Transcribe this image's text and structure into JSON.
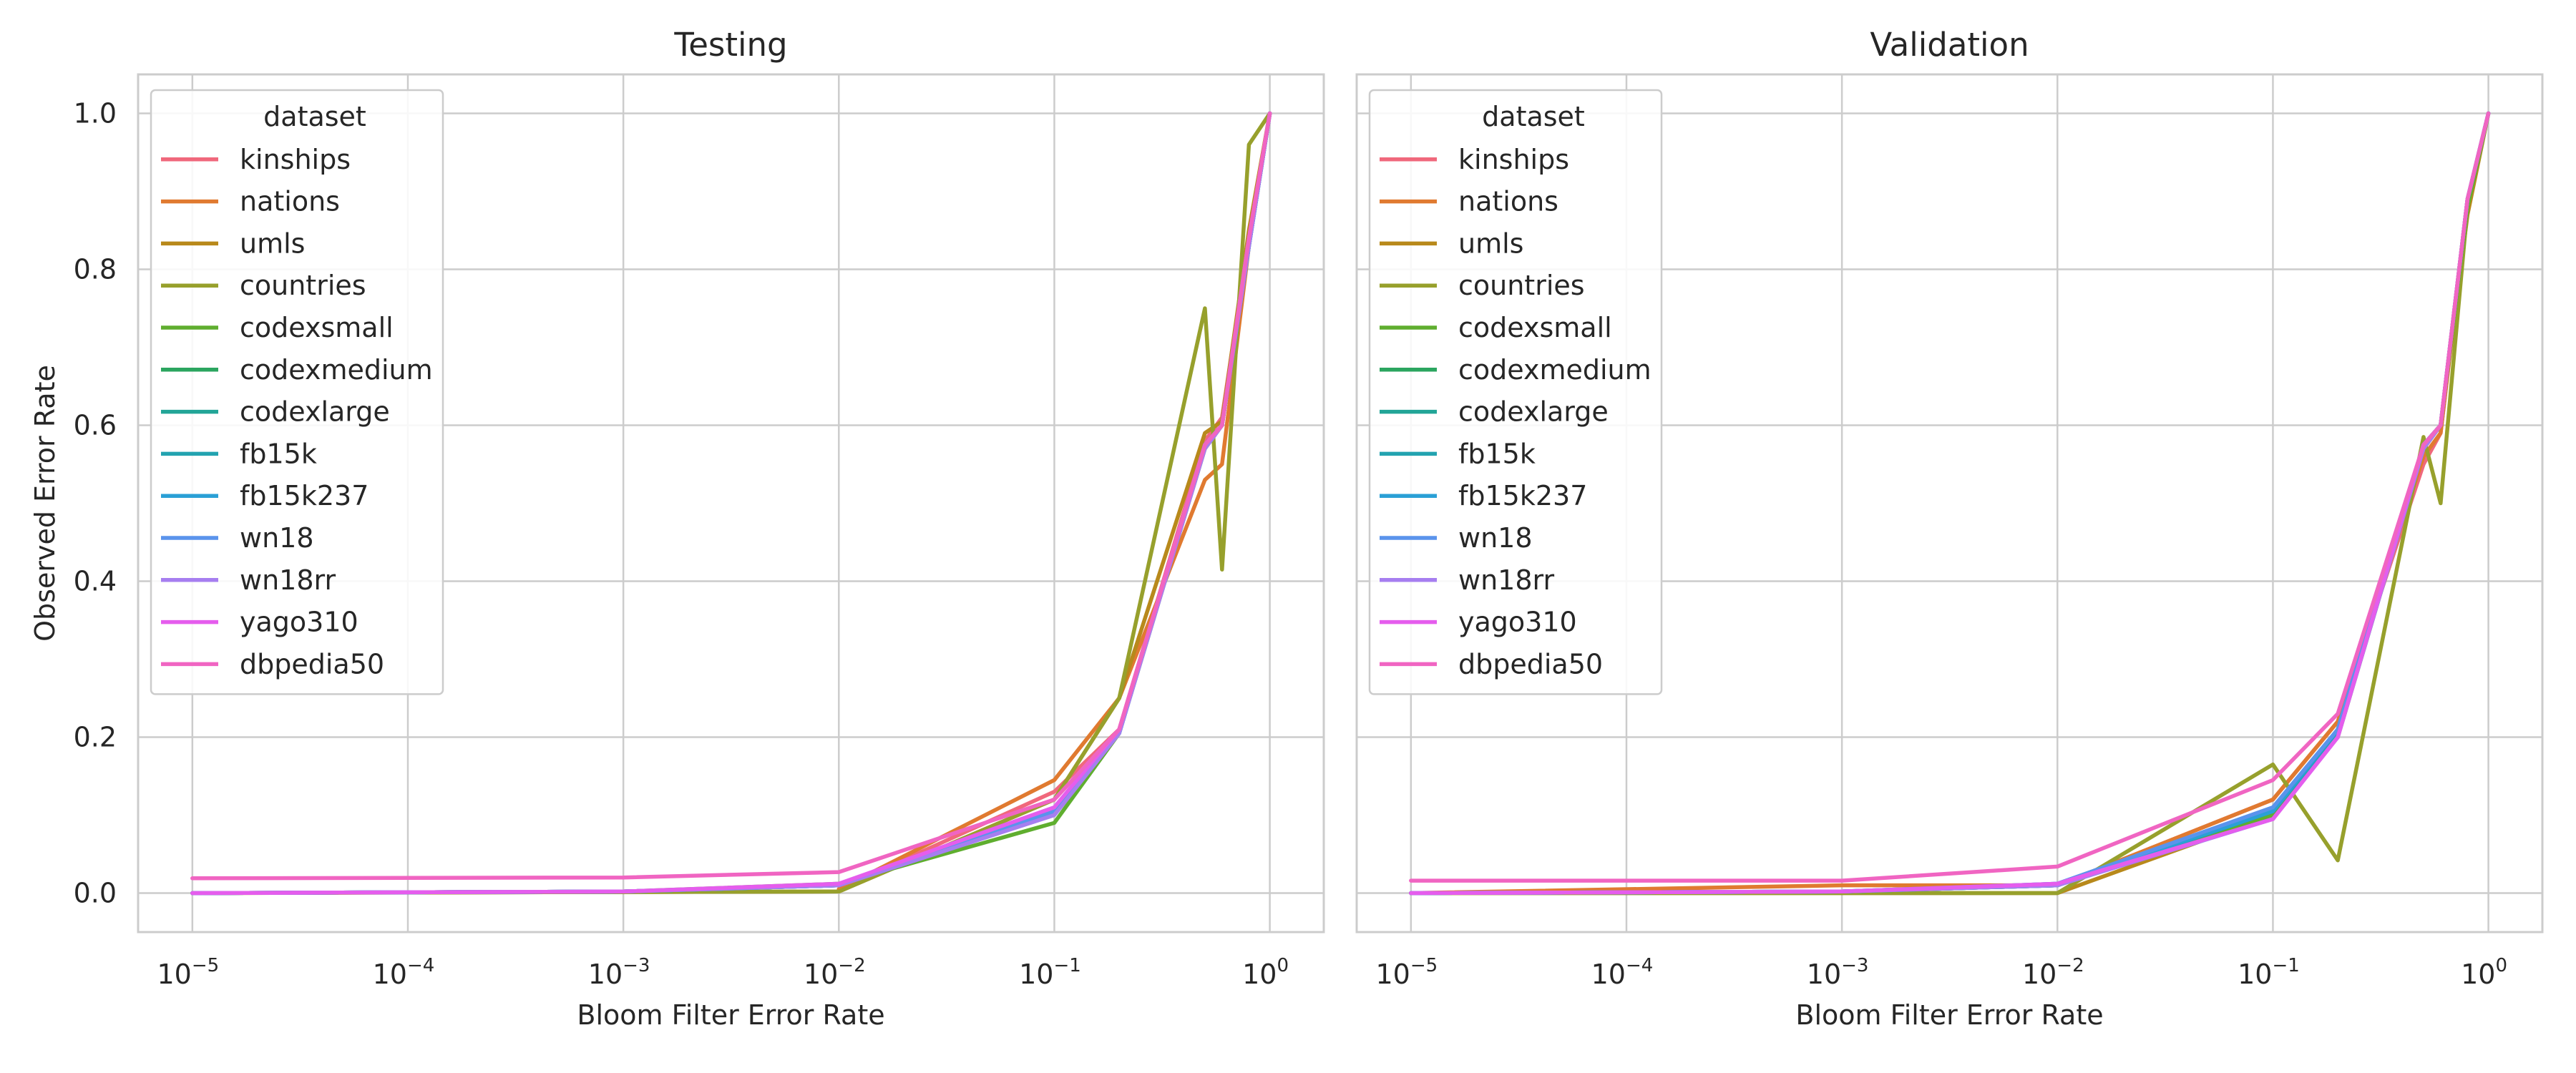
{
  "chart_data": [
    {
      "type": "line",
      "title": "Testing",
      "xlabel": "Bloom Filter Error Rate",
      "ylabel": "Observed Error Rate",
      "xscale": "log",
      "xlim": [
        5.6e-06,
        1.78
      ],
      "ylim": [
        -0.05,
        1.05
      ],
      "xticks": [
        "10^-5",
        "10^-4",
        "10^-3",
        "10^-2",
        "10^-1",
        "10^0"
      ],
      "yticks": [
        "0.0",
        "0.2",
        "0.4",
        "0.6",
        "0.8",
        "1.0"
      ],
      "grid": true,
      "legend_title": "dataset",
      "legend_position": "upper-left",
      "series": [
        {
          "name": "kinships",
          "color": "#f0687c",
          "x": [
            0.01,
            0.1,
            0.2,
            0.5,
            0.6,
            0.8,
            1.0
          ],
          "y": [
            0.005,
            0.13,
            0.21,
            0.58,
            0.61,
            0.84,
            1.0
          ]
        },
        {
          "name": "nations",
          "color": "#e07a30",
          "x": [
            0.01,
            0.1,
            0.2,
            0.5,
            0.6,
            0.8,
            1.0
          ],
          "y": [
            0.005,
            0.145,
            0.25,
            0.53,
            0.55,
            0.83,
            1.0
          ]
        },
        {
          "name": "umls",
          "color": "#b8891b",
          "x": [
            1e-05,
            0.01,
            0.1,
            0.2,
            0.5,
            0.6,
            0.8,
            1.0
          ],
          "y": [
            0.0,
            0.002,
            0.12,
            0.25,
            0.59,
            0.605,
            0.85,
            1.0
          ]
        },
        {
          "name": "countries",
          "color": "#97a02c",
          "x": [
            1e-05,
            0.01,
            0.1,
            0.2,
            0.5,
            0.6,
            0.8,
            1.0
          ],
          "y": [
            0.0,
            0.002,
            0.12,
            0.25,
            0.75,
            0.415,
            0.96,
            1.0
          ]
        },
        {
          "name": "codexsmall",
          "color": "#5fae2f",
          "x": [
            1e-05,
            0.001,
            0.01,
            0.1,
            0.2,
            0.5,
            0.6,
            0.8,
            1.0
          ],
          "y": [
            0.0,
            0.002,
            0.012,
            0.09,
            0.205,
            0.57,
            0.6,
            0.83,
            1.0
          ]
        },
        {
          "name": "codexmedium",
          "color": "#2ba55f",
          "x": [
            1e-05,
            0.001,
            0.01,
            0.1,
            0.2,
            0.5,
            0.6,
            0.8,
            1.0
          ],
          "y": [
            0.0,
            0.002,
            0.01,
            0.105,
            0.205,
            0.575,
            0.6,
            0.83,
            1.0
          ]
        },
        {
          "name": "codexlarge",
          "color": "#22a597",
          "x": [
            1e-05,
            0.001,
            0.01,
            0.1,
            0.2,
            0.5,
            0.6,
            0.8,
            1.0
          ],
          "y": [
            0.0,
            0.002,
            0.01,
            0.105,
            0.205,
            0.575,
            0.6,
            0.83,
            1.0
          ]
        },
        {
          "name": "fb15k",
          "color": "#23a3b0",
          "x": [
            1e-05,
            0.001,
            0.01,
            0.1,
            0.2,
            0.5,
            0.6,
            0.8,
            1.0
          ],
          "y": [
            0.0,
            0.002,
            0.01,
            0.105,
            0.205,
            0.575,
            0.6,
            0.83,
            1.0
          ]
        },
        {
          "name": "fb15k237",
          "color": "#2aa0d6",
          "x": [
            1e-05,
            0.001,
            0.01,
            0.1,
            0.2,
            0.5,
            0.6,
            0.8,
            1.0
          ],
          "y": [
            0.0,
            0.002,
            0.01,
            0.105,
            0.205,
            0.575,
            0.6,
            0.83,
            1.0
          ]
        },
        {
          "name": "wn18",
          "color": "#5a93ec",
          "x": [
            1e-05,
            0.001,
            0.01,
            0.1,
            0.2,
            0.5,
            0.6,
            0.8,
            1.0
          ],
          "y": [
            0.0,
            0.002,
            0.01,
            0.105,
            0.205,
            0.575,
            0.6,
            0.83,
            1.0
          ]
        },
        {
          "name": "wn18rr",
          "color": "#a67ef0",
          "x": [
            1e-05,
            0.001,
            0.01,
            0.1,
            0.2,
            0.5,
            0.6,
            0.8,
            1.0
          ],
          "y": [
            0.0,
            0.002,
            0.01,
            0.1,
            0.205,
            0.57,
            0.6,
            0.83,
            1.0
          ]
        },
        {
          "name": "yago310",
          "color": "#e55ded",
          "x": [
            1e-05,
            0.001,
            0.01,
            0.1,
            0.2,
            0.5,
            0.6,
            0.8,
            1.0
          ],
          "y": [
            0.0,
            0.002,
            0.012,
            0.11,
            0.21,
            0.575,
            0.6,
            0.84,
            1.0
          ]
        },
        {
          "name": "dbpedia50",
          "color": "#f065c2",
          "x": [
            1e-05,
            0.001,
            0.01,
            0.1,
            0.2,
            0.5,
            0.6,
            0.8,
            1.0
          ],
          "y": [
            0.019,
            0.02,
            0.027,
            0.12,
            0.21,
            0.575,
            0.6,
            0.84,
            1.0
          ]
        }
      ]
    },
    {
      "type": "line",
      "title": "Validation",
      "xlabel": "Bloom Filter Error Rate",
      "ylabel": "",
      "xscale": "log",
      "xlim": [
        5.6e-06,
        1.78
      ],
      "ylim": [
        -0.05,
        1.05
      ],
      "xticks": [
        "10^-5",
        "10^-4",
        "10^-3",
        "10^-2",
        "10^-1",
        "10^0"
      ],
      "grid": true,
      "legend_title": "dataset",
      "legend_position": "upper-left",
      "series": [
        {
          "name": "kinships",
          "color": "#f0687c",
          "x": [
            0.01,
            0.1,
            0.2,
            0.5,
            0.6,
            0.8,
            1.0
          ],
          "y": [
            0.01,
            0.12,
            0.22,
            0.55,
            0.59,
            0.89,
            1.0
          ]
        },
        {
          "name": "nations",
          "color": "#e07a30",
          "x": [
            1e-05,
            0.001,
            0.01,
            0.1,
            0.2,
            0.5,
            0.6,
            0.8,
            1.0
          ],
          "y": [
            0.0,
            0.01,
            0.01,
            0.12,
            0.22,
            0.56,
            0.59,
            0.88,
            1.0
          ]
        },
        {
          "name": "umls",
          "color": "#b8891b",
          "x": [
            1e-05,
            0.01,
            0.1,
            0.2,
            0.5,
            0.6,
            0.8,
            1.0
          ],
          "y": [
            0.0,
            0.0,
            0.1,
            0.21,
            0.57,
            0.6,
            0.87,
            1.0
          ]
        },
        {
          "name": "countries",
          "color": "#97a02c",
          "x": [
            1e-05,
            0.01,
            0.1,
            0.2,
            0.5,
            0.6,
            0.8,
            1.0
          ],
          "y": [
            0.0,
            0.0,
            0.165,
            0.042,
            0.585,
            0.5,
            0.88,
            1.0
          ]
        },
        {
          "name": "codexsmall",
          "color": "#5fae2f",
          "x": [
            1e-05,
            0.001,
            0.01,
            0.1,
            0.2,
            0.5,
            0.6,
            0.8,
            1.0
          ],
          "y": [
            0.0,
            0.002,
            0.01,
            0.1,
            0.2,
            0.57,
            0.6,
            0.88,
            1.0
          ]
        },
        {
          "name": "codexmedium",
          "color": "#2ba55f",
          "x": [
            1e-05,
            0.001,
            0.01,
            0.1,
            0.2,
            0.5,
            0.6,
            0.8,
            1.0
          ],
          "y": [
            0.0,
            0.002,
            0.01,
            0.105,
            0.205,
            0.575,
            0.6,
            0.89,
            1.0
          ]
        },
        {
          "name": "codexlarge",
          "color": "#22a597",
          "x": [
            1e-05,
            0.001,
            0.01,
            0.1,
            0.2,
            0.5,
            0.6,
            0.8,
            1.0
          ],
          "y": [
            0.0,
            0.002,
            0.01,
            0.105,
            0.205,
            0.575,
            0.6,
            0.89,
            1.0
          ]
        },
        {
          "name": "fb15k",
          "color": "#23a3b0",
          "x": [
            1e-05,
            0.001,
            0.01,
            0.1,
            0.2,
            0.5,
            0.6,
            0.8,
            1.0
          ],
          "y": [
            0.0,
            0.002,
            0.01,
            0.105,
            0.205,
            0.575,
            0.6,
            0.89,
            1.0
          ]
        },
        {
          "name": "fb15k237",
          "color": "#2aa0d6",
          "x": [
            1e-05,
            0.001,
            0.01,
            0.1,
            0.2,
            0.5,
            0.6,
            0.8,
            1.0
          ],
          "y": [
            0.0,
            0.002,
            0.012,
            0.105,
            0.21,
            0.575,
            0.6,
            0.89,
            1.0
          ]
        },
        {
          "name": "wn18",
          "color": "#5a93ec",
          "x": [
            1e-05,
            0.001,
            0.01,
            0.1,
            0.2,
            0.5,
            0.6,
            0.8,
            1.0
          ],
          "y": [
            0.0,
            0.002,
            0.012,
            0.11,
            0.21,
            0.575,
            0.6,
            0.89,
            1.0
          ]
        },
        {
          "name": "wn18rr",
          "color": "#a67ef0",
          "x": [
            1e-05,
            0.001,
            0.01,
            0.1,
            0.2,
            0.5,
            0.6,
            0.8,
            1.0
          ],
          "y": [
            0.0,
            0.002,
            0.01,
            0.095,
            0.2,
            0.57,
            0.6,
            0.89,
            1.0
          ]
        },
        {
          "name": "yago310",
          "color": "#e55ded",
          "x": [
            1e-05,
            0.001,
            0.01,
            0.1,
            0.2,
            0.5,
            0.6,
            0.8,
            1.0
          ],
          "y": [
            0.0,
            0.002,
            0.012,
            0.095,
            0.2,
            0.575,
            0.6,
            0.89,
            1.0
          ]
        },
        {
          "name": "dbpedia50",
          "color": "#f065c2",
          "x": [
            1e-05,
            0.001,
            0.01,
            0.1,
            0.2,
            0.5,
            0.6,
            0.8,
            1.0
          ],
          "y": [
            0.016,
            0.016,
            0.034,
            0.145,
            0.23,
            0.575,
            0.6,
            0.89,
            1.0
          ]
        }
      ]
    }
  ]
}
